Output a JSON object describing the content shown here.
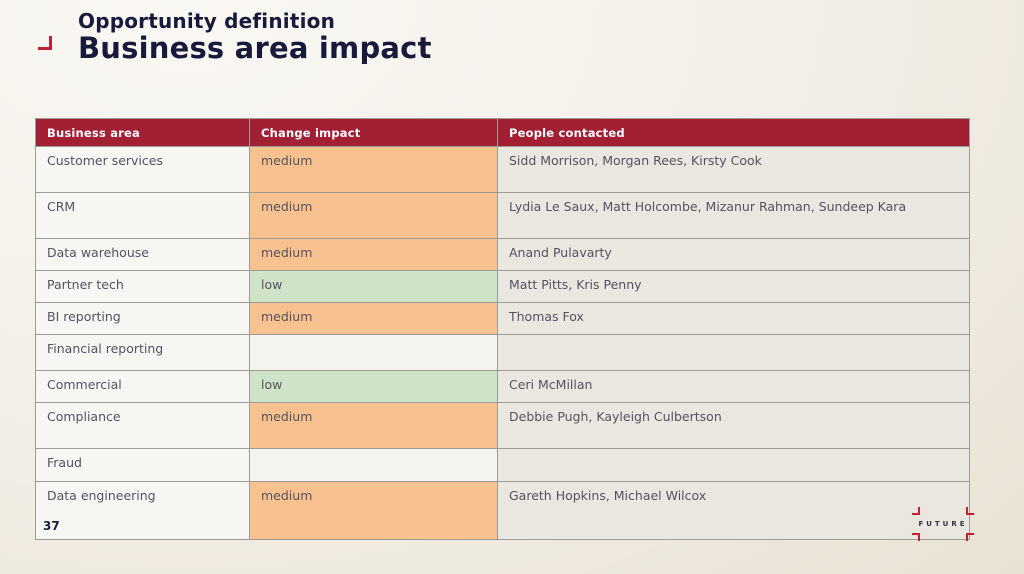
{
  "slide": {
    "kicker": "Opportunity definition",
    "title": "Business area impact",
    "page_number": "37",
    "logo_text": "FUTURE"
  },
  "colors": {
    "header_bg": "#A31F34",
    "accent_red": "#C22033",
    "title_color": "#171A3A",
    "impact_medium_bg": "#F7C28F",
    "impact_low_bg": "#CFE3C9"
  },
  "table": {
    "columns": [
      "Business area",
      "Change impact",
      "People contacted"
    ],
    "rows": [
      {
        "area": "Customer services",
        "impact": "medium",
        "people": "Sidd Morrison, Morgan Rees, Kirsty Cook"
      },
      {
        "area": "CRM",
        "impact": "medium",
        "people": "Lydia Le Saux, Matt Holcombe, Mizanur Rahman, Sundeep Kara"
      },
      {
        "area": "Data warehouse",
        "impact": "medium",
        "people": "Anand Pulavarty"
      },
      {
        "area": "Partner tech",
        "impact": "low",
        "people": "Matt Pitts, Kris Penny"
      },
      {
        "area": "BI reporting",
        "impact": "medium",
        "people": "Thomas Fox"
      },
      {
        "area": "Financial reporting",
        "impact": "",
        "people": ""
      },
      {
        "area": "Commercial",
        "impact": "low",
        "people": "Ceri McMillan"
      },
      {
        "area": "Compliance",
        "impact": "medium",
        "people": "Debbie Pugh, Kayleigh Culbertson"
      },
      {
        "area": "Fraud",
        "impact": "",
        "people": ""
      },
      {
        "area": "Data engineering",
        "impact": "medium",
        "people": "Gareth Hopkins, Michael Wilcox"
      }
    ]
  }
}
